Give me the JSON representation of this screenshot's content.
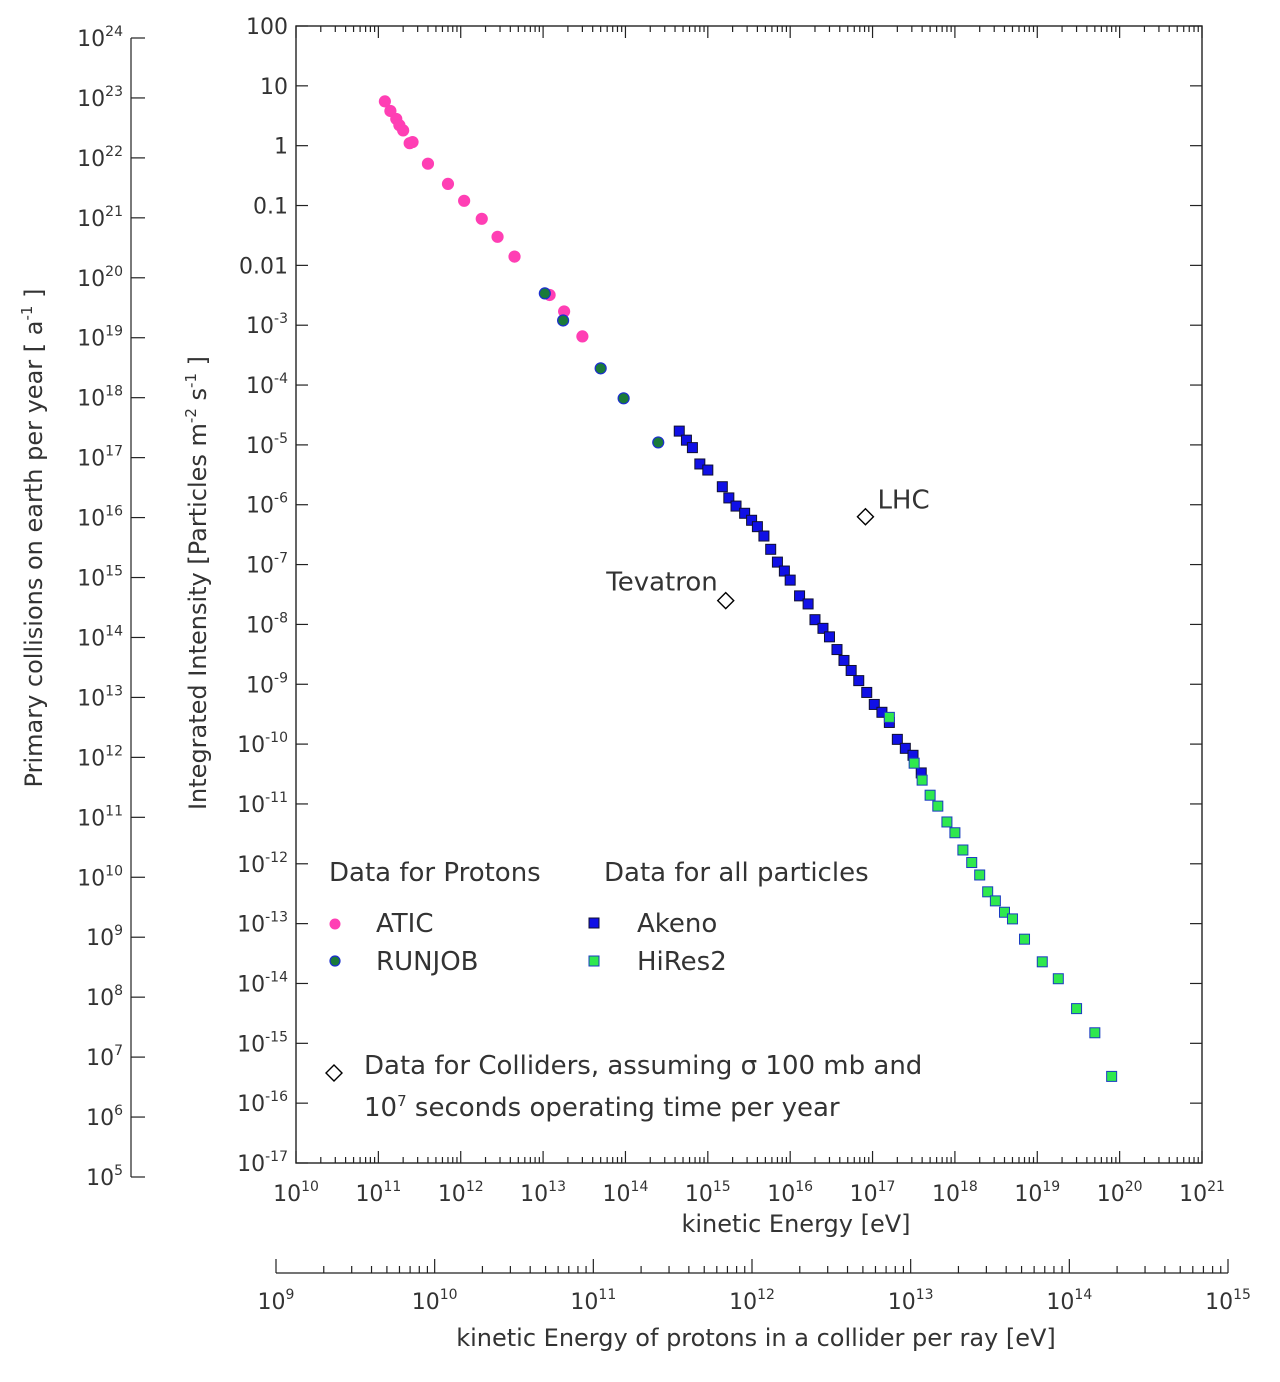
{
  "chart_data": {
    "type": "scatter",
    "xlabel": "kinetic Energy [eV]",
    "ylabel": "Integrated Intensity [Particles m^-2 s^-1 ]",
    "xlim": [
      10000000000.0,
      1e+21
    ],
    "ylim": [
      1e-17,
      100
    ],
    "x_scale": "log",
    "y_scale": "log",
    "x_ticks": [
      "10^10",
      "10^11",
      "10^12",
      "10^13",
      "10^14",
      "10^15",
      "10^16",
      "10^17",
      "10^18",
      "10^19",
      "10^20",
      "10^21"
    ],
    "y_ticks": [
      "100",
      "10",
      "1",
      "0.1",
      "0.01",
      "10^-3",
      "10^-4",
      "10^-5",
      "10^-6",
      "10^-7",
      "10^-8",
      "10^-9",
      "10^-10",
      "10^-11",
      "10^-12",
      "10^-13",
      "10^-14",
      "10^-15",
      "10^-16",
      "10^-17"
    ],
    "left_axis": {
      "label": "Primary collisions on earth per year [ a^-1 ]",
      "scale": "log",
      "ticks": [
        "10^24",
        "10^23",
        "10^22",
        "10^21",
        "10^20",
        "10^19",
        "10^18",
        "10^17",
        "10^16",
        "10^15",
        "10^14",
        "10^13",
        "10^12",
        "10^11",
        "10^10",
        "10^9",
        "10^8",
        "10^7",
        "10^6",
        "10^5"
      ]
    },
    "bottom_axis": {
      "label": "kinetic Energy of protons in a collider per ray [eV]",
      "scale": "log",
      "ticks": [
        "10^9",
        "10^10",
        "10^11",
        "10^12",
        "10^13",
        "10^14",
        "10^15"
      ]
    },
    "legend": {
      "placement": "lower-left",
      "protons_heading": "Data for Protons",
      "all_heading": "Data for all particles",
      "colliders_line1": "Data for Colliders, assuming σ 100 mb and",
      "colliders_line2": "10^7 seconds operating time per year"
    },
    "series": [
      {
        "name": "ATIC",
        "marker": "circle",
        "color": "#ff3fb4",
        "edge": "#ff3fb4",
        "points": [
          [
            120000000000.0,
            5.5
          ],
          [
            140000000000.0,
            3.8
          ],
          [
            165000000000.0,
            2.8
          ],
          [
            180000000000.0,
            2.2
          ],
          [
            200000000000.0,
            1.8
          ],
          [
            240000000000.0,
            1.1
          ],
          [
            260000000000.0,
            1.15
          ],
          [
            400000000000.0,
            0.5
          ],
          [
            700000000000.0,
            0.23
          ],
          [
            1100000000000.0,
            0.12
          ],
          [
            1800000000000.0,
            0.06
          ],
          [
            2800000000000.0,
            0.03
          ],
          [
            4500000000000.0,
            0.014
          ],
          [
            12000000000000.0,
            0.0032
          ],
          [
            18000000000000.0,
            0.0017
          ],
          [
            30000000000000.0,
            0.00065
          ]
        ]
      },
      {
        "name": "RUNJOB",
        "marker": "circle",
        "color": "#1a7a3a",
        "edge": "#1c2fd0",
        "points": [
          [
            10500000000000.0,
            0.0034
          ],
          [
            17500000000000.0,
            0.0012
          ],
          [
            50000000000000.0,
            0.00019
          ],
          [
            95000000000000.0,
            6e-05
          ],
          [
            250000000000000.0,
            1.1e-05
          ]
        ]
      },
      {
        "name": "Akeno",
        "marker": "square",
        "color": "#1010e6",
        "edge": "#101030",
        "points": [
          [
            450000000000000.0,
            1.7e-05
          ],
          [
            550000000000000.0,
            1.2e-05
          ],
          [
            650000000000000.0,
            9e-06
          ],
          [
            800000000000000.0,
            4.8e-06
          ],
          [
            1000000000000000.0,
            3.8e-06
          ],
          [
            1500000000000000.0,
            2e-06
          ],
          [
            1800000000000000.0,
            1.3e-06
          ],
          [
            2200000000000000.0,
            9.5e-07
          ],
          [
            2800000000000000.0,
            7.2e-07
          ],
          [
            3400000000000000.0,
            5.5e-07
          ],
          [
            4000000000000000.0,
            4.3e-07
          ],
          [
            4800000000000000.0,
            3e-07
          ],
          [
            5800000000000000.0,
            1.8e-07
          ],
          [
            7000000000000000.0,
            1.1e-07
          ],
          [
            8500000000000000.0,
            7.8e-08
          ],
          [
            1e+16,
            5.5e-08
          ],
          [
            1.3e+16,
            3e-08
          ],
          [
            1.65e+16,
            2.2e-08
          ],
          [
            2e+16,
            1.2e-08
          ],
          [
            2.5e+16,
            8.6e-09
          ],
          [
            3e+16,
            6.2e-09
          ],
          [
            3.7e+16,
            3.8e-09
          ],
          [
            4.5e+16,
            2.5e-09
          ],
          [
            5.5e+16,
            1.7e-09
          ],
          [
            6.8e+16,
            1.15e-09
          ],
          [
            8.5e+16,
            7.3e-10
          ],
          [
            1.05e+17,
            4.6e-10
          ],
          [
            1.3e+17,
            3.4e-10
          ],
          [
            1.6e+17,
            2.3e-10
          ],
          [
            2e+17,
            1.2e-10
          ],
          [
            2.5e+17,
            8.5e-11
          ],
          [
            3.1e+17,
            6.5e-11
          ],
          [
            3.9e+17,
            3.3e-11
          ]
        ]
      },
      {
        "name": "HiRes2",
        "marker": "square",
        "color": "#2fe84e",
        "edge": "#1a3cc0",
        "points": [
          [
            1.6e+17,
            2.8e-10
          ],
          [
            3.2e+17,
            4.8e-11
          ],
          [
            4e+17,
            2.5e-11
          ],
          [
            5e+17,
            1.4e-11
          ],
          [
            6.2e+17,
            9.2e-12
          ],
          [
            8e+17,
            5e-12
          ],
          [
            1e+18,
            3.3e-12
          ],
          [
            1.25e+18,
            1.7e-12
          ],
          [
            1.6e+18,
            1.05e-12
          ],
          [
            2e+18,
            6.5e-13
          ],
          [
            2.5e+18,
            3.4e-13
          ],
          [
            3.1e+18,
            2.4e-13
          ],
          [
            4e+18,
            1.55e-13
          ],
          [
            5e+18,
            1.2e-13
          ],
          [
            7e+18,
            5.5e-14
          ],
          [
            1.15e+19,
            2.3e-14
          ],
          [
            1.8e+19,
            1.2e-14
          ],
          [
            3e+19,
            3.8e-15
          ],
          [
            5e+19,
            1.5e-15
          ],
          [
            8e+19,
            2.8e-16
          ]
        ]
      },
      {
        "name": "Colliders",
        "marker": "diamond",
        "color": "#ffffff",
        "edge": "#000000",
        "points": [
          [
            1650000000000000.0,
            2.5e-08
          ],
          [
            8.2e+16,
            6.3e-07
          ]
        ],
        "labels": [
          "Tevatron",
          "LHC"
        ]
      }
    ]
  }
}
